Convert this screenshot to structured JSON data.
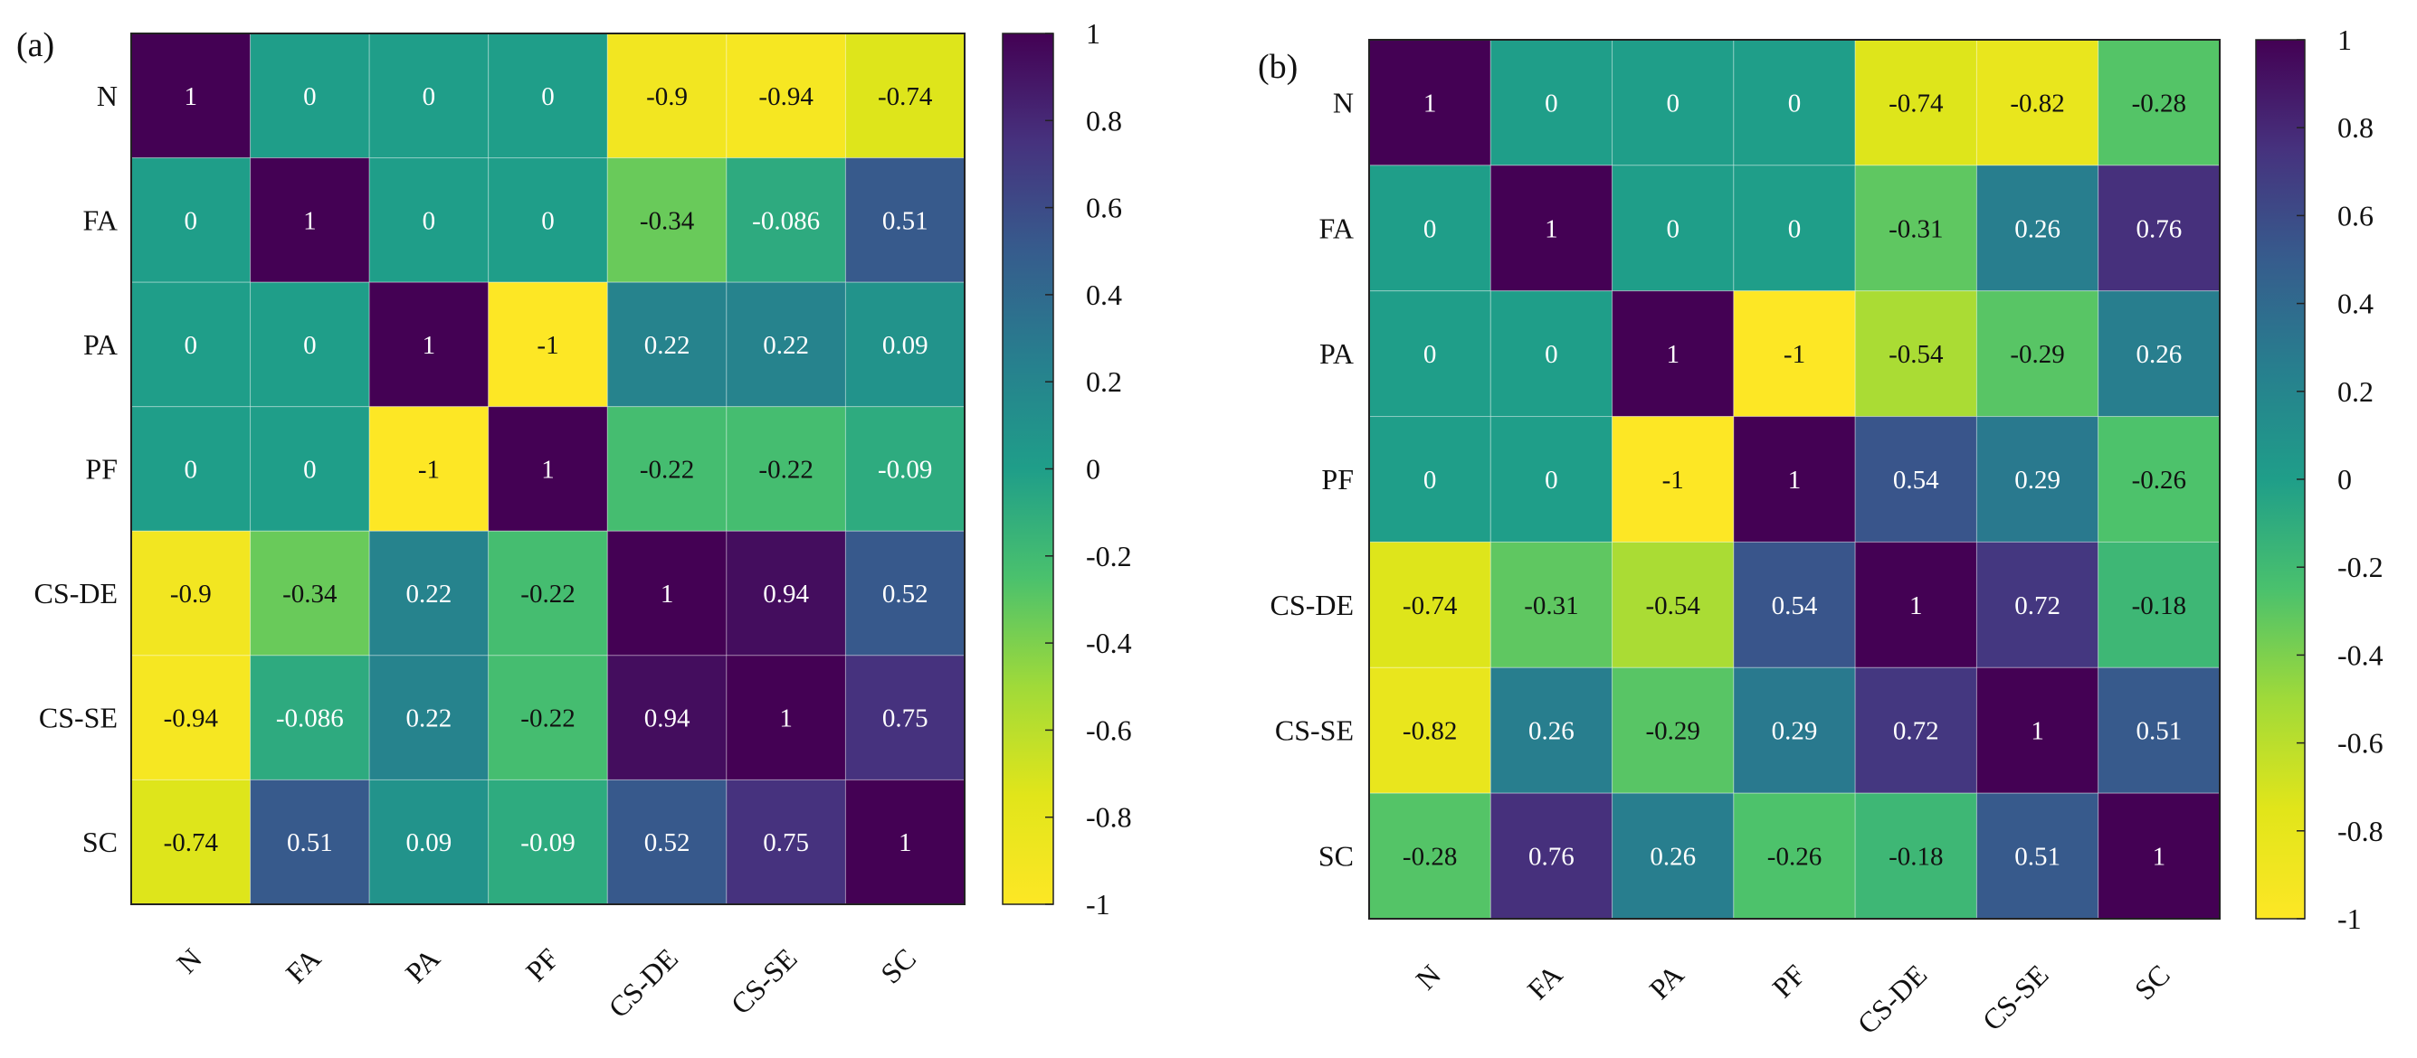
{
  "chart_data": [
    {
      "type": "heatmap",
      "panel_label": "(a)",
      "row_labels": [
        "N",
        "FA",
        "PA",
        "PF",
        "CS-DE",
        "CS-SE",
        "SC"
      ],
      "col_labels": [
        "N",
        "FA",
        "PA",
        "PF",
        "CS-DE",
        "CS-SE",
        "SC"
      ],
      "values": [
        [
          1,
          0,
          0,
          0,
          -0.9,
          -0.94,
          -0.74
        ],
        [
          0,
          1,
          0,
          0,
          -0.34,
          -0.086,
          0.51
        ],
        [
          0,
          0,
          1,
          -1,
          0.22,
          0.22,
          0.09
        ],
        [
          0,
          0,
          -1,
          1,
          -0.22,
          -0.22,
          -0.09
        ],
        [
          -0.9,
          -0.34,
          0.22,
          -0.22,
          1,
          0.94,
          0.52
        ],
        [
          -0.94,
          -0.086,
          0.22,
          -0.22,
          0.94,
          1,
          0.75
        ],
        [
          -0.74,
          0.51,
          0.09,
          -0.09,
          0.52,
          0.75,
          1
        ]
      ],
      "colorbar": {
        "range": [
          -1,
          1
        ],
        "ticks": [
          1,
          0.8,
          0.6,
          0.4,
          0.2,
          0,
          -0.2,
          -0.4,
          -0.6,
          -0.8,
          -1
        ],
        "tick_labels": [
          "1",
          "0.8",
          "0.6",
          "0.4",
          "0.2",
          "0",
          "-0.2",
          "-0.4",
          "-0.6",
          "-0.8",
          "-1"
        ],
        "colormap": "viridis_r"
      }
    },
    {
      "type": "heatmap",
      "panel_label": "(b)",
      "row_labels": [
        "N",
        "FA",
        "PA",
        "PF",
        "CS-DE",
        "CS-SE",
        "SC"
      ],
      "col_labels": [
        "N",
        "FA",
        "PA",
        "PF",
        "CS-DE",
        "CS-SE",
        "SC"
      ],
      "values": [
        [
          1,
          0,
          0,
          0,
          -0.74,
          -0.82,
          -0.28
        ],
        [
          0,
          1,
          0,
          0,
          -0.31,
          0.26,
          0.76
        ],
        [
          0,
          0,
          1,
          -1,
          -0.54,
          -0.29,
          0.26
        ],
        [
          0,
          0,
          -1,
          1,
          0.54,
          0.29,
          -0.26
        ],
        [
          -0.74,
          -0.31,
          -0.54,
          0.54,
          1,
          0.72,
          -0.18
        ],
        [
          -0.82,
          0.26,
          -0.29,
          0.29,
          0.72,
          1,
          0.51
        ],
        [
          -0.28,
          0.76,
          0.26,
          -0.26,
          -0.18,
          0.51,
          1
        ]
      ],
      "colorbar": {
        "range": [
          -1,
          1
        ],
        "ticks": [
          1,
          0.8,
          0.6,
          0.4,
          0.2,
          0,
          -0.2,
          -0.4,
          -0.6,
          -0.8,
          -1
        ],
        "tick_labels": [
          "1",
          "0.8",
          "0.6",
          "0.4",
          "0.2",
          "0",
          "-0.2",
          "-0.4",
          "-0.6",
          "-0.8",
          "-1"
        ],
        "colormap": "viridis_r"
      }
    }
  ]
}
